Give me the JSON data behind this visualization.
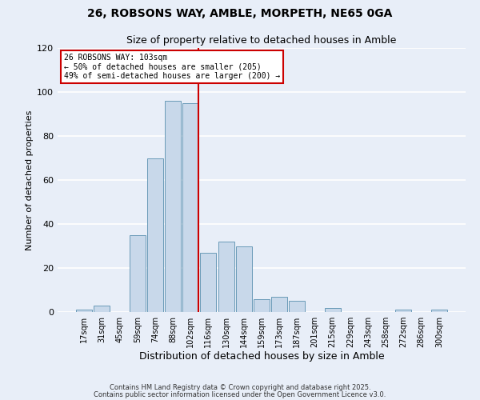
{
  "title": "26, ROBSONS WAY, AMBLE, MORPETH, NE65 0GA",
  "subtitle": "Size of property relative to detached houses in Amble",
  "xlabel": "Distribution of detached houses by size in Amble",
  "ylabel": "Number of detached properties",
  "bar_color": "#c8d8ea",
  "bar_edge_color": "#6a9ab8",
  "bin_labels": [
    "17sqm",
    "31sqm",
    "45sqm",
    "59sqm",
    "74sqm",
    "88sqm",
    "102sqm",
    "116sqm",
    "130sqm",
    "144sqm",
    "159sqm",
    "173sqm",
    "187sqm",
    "201sqm",
    "215sqm",
    "229sqm",
    "243sqm",
    "258sqm",
    "272sqm",
    "286sqm",
    "300sqm"
  ],
  "bar_heights": [
    1,
    3,
    0,
    35,
    70,
    96,
    95,
    27,
    32,
    30,
    6,
    7,
    5,
    0,
    2,
    0,
    0,
    0,
    1,
    0,
    1
  ],
  "vline_color": "#cc0000",
  "ylim": [
    0,
    120
  ],
  "yticks": [
    0,
    20,
    40,
    60,
    80,
    100,
    120
  ],
  "annotation_title": "26 ROBSONS WAY: 103sqm",
  "annotation_line1": "← 50% of detached houses are smaller (205)",
  "annotation_line2": "49% of semi-detached houses are larger (200) →",
  "annotation_box_color": "#ffffff",
  "annotation_box_edge": "#cc0000",
  "footer1": "Contains HM Land Registry data © Crown copyright and database right 2025.",
  "footer2": "Contains public sector information licensed under the Open Government Licence v3.0.",
  "background_color": "#e8eef8",
  "grid_color": "#ffffff",
  "title_fontsize": 10,
  "subtitle_fontsize": 9,
  "xlabel_fontsize": 9,
  "ylabel_fontsize": 8,
  "tick_fontsize": 7,
  "annot_fontsize": 7,
  "footer_fontsize": 6
}
